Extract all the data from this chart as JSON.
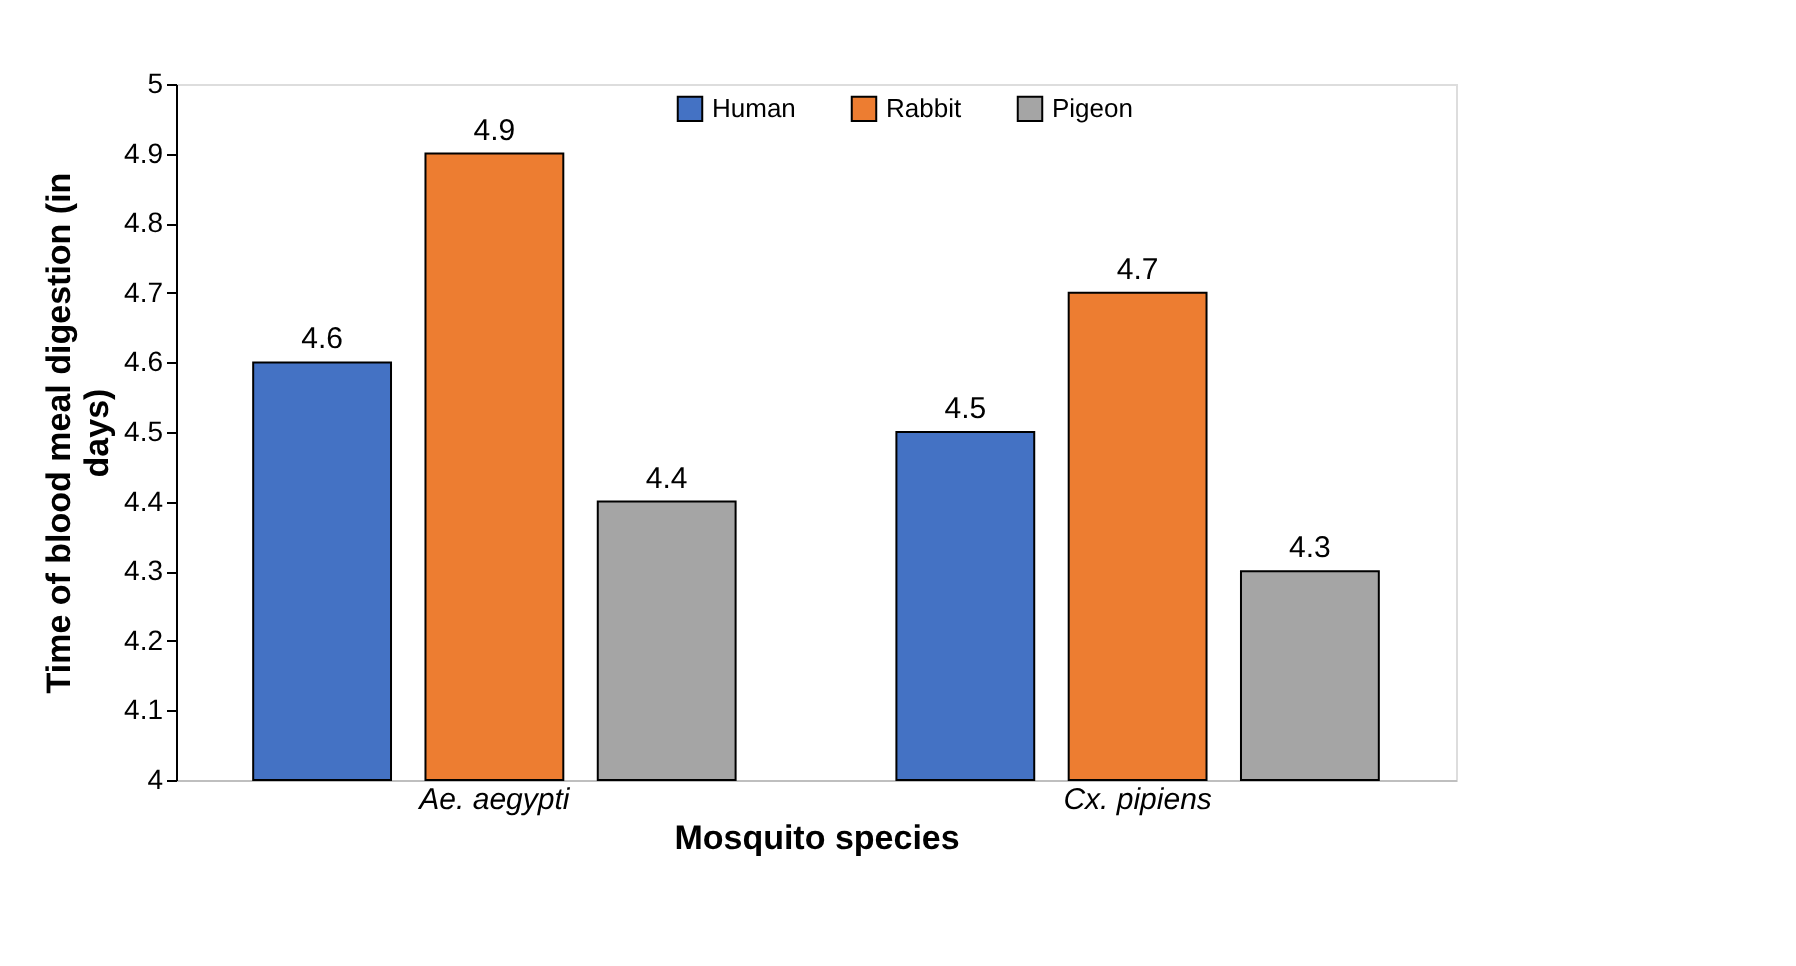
{
  "chart_data": {
    "type": "bar",
    "categories": [
      "Ae. aegypti",
      "Cx. pipiens"
    ],
    "series": [
      {
        "name": "Human",
        "color": "#4472c4",
        "values": [
          4.6,
          4.5
        ]
      },
      {
        "name": "Rabbit",
        "color": "#ed7d31",
        "values": [
          4.9,
          4.7
        ]
      },
      {
        "name": "Pigeon",
        "color": "#a5a5a5",
        "values": [
          4.4,
          4.3
        ]
      }
    ],
    "xlabel": "Mosquito species",
    "ylabel": "Time of blood meal digestion (in days)",
    "ylim": [
      4,
      5
    ],
    "yticks": [
      4,
      4.1,
      4.2,
      4.3,
      4.4,
      4.5,
      4.6,
      4.7,
      4.8,
      4.9,
      5
    ],
    "data_labels": true,
    "grid": false,
    "legend": "top"
  }
}
